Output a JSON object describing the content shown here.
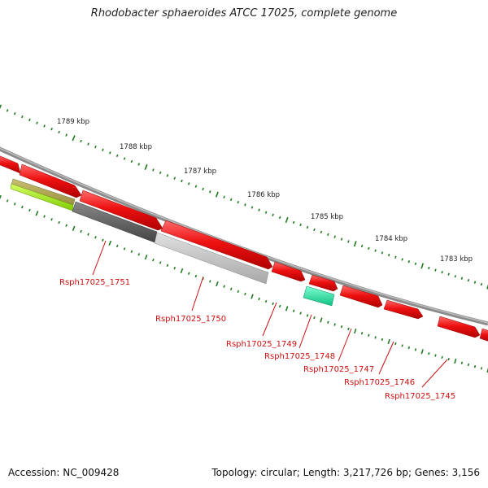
{
  "title": "Rhodobacter sphaeroides ATCC 17025, complete genome",
  "footer": {
    "accession": "Accession: NC_009428",
    "summary": "Topology: circular; Length: 3,217,726 bp; Genes: 3,156"
  },
  "ticks": [
    "1789 kbp",
    "1788 kbp",
    "1787 kbp",
    "1786 kbp",
    "1785 kbp",
    "1784 kbp",
    "1783 kbp"
  ],
  "genes": [
    "Rsph17025_1751",
    "Rsph17025_1750",
    "Rsph17025_1749",
    "Rsph17025_1748",
    "Rsph17025_1747",
    "Rsph17025_1746",
    "Rsph17025_1745"
  ],
  "colors": {
    "backbone": "#8a8a8a",
    "forward_gene": "#ee1111",
    "tick": "#1e7a1e",
    "label": "#cc1111"
  }
}
